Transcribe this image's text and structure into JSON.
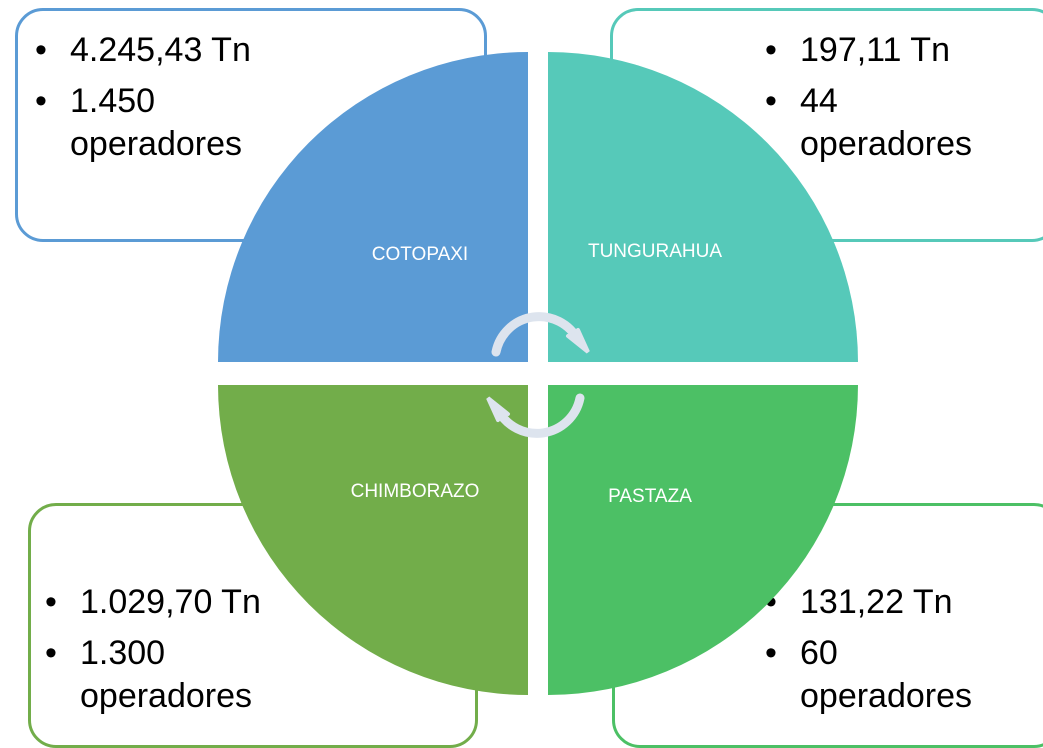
{
  "quadrants": [
    {
      "label": "COTOPAXI",
      "items": [
        "4.245,43 Tn",
        "1.450 operadores"
      ]
    },
    {
      "label": "TUNGURAHUA",
      "items": [
        "197,11 Tn",
        "44 operadores"
      ]
    },
    {
      "label": "CHIMBORAZO",
      "items": [
        "1.029,70 Tn",
        "1.300 operadores"
      ]
    },
    {
      "label": "PASTAZA",
      "items": [
        "131,22 Tn",
        "60 operadores"
      ]
    }
  ]
}
